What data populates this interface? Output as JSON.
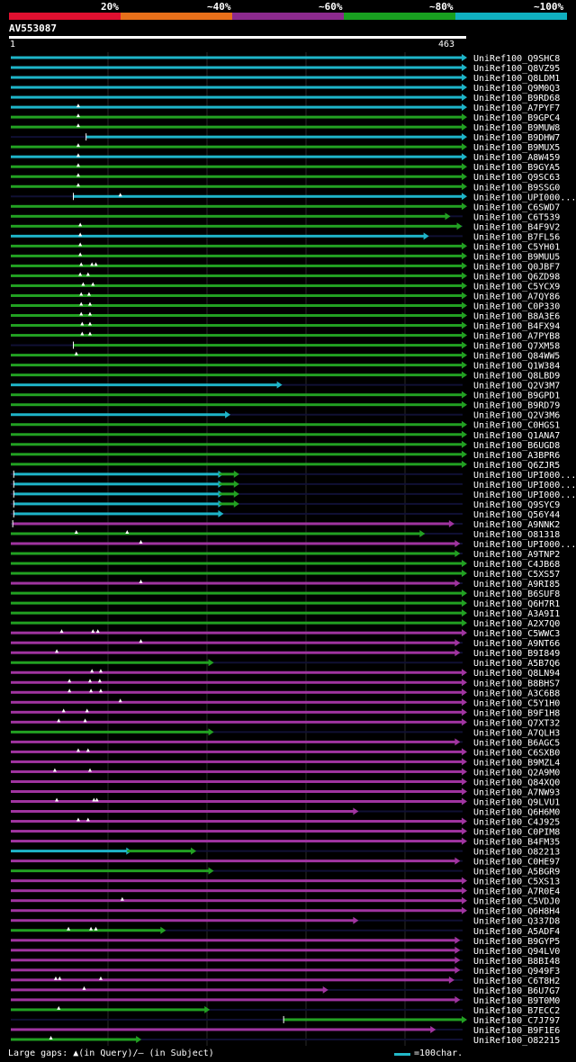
{
  "legend": {
    "labels": [
      "20%",
      "~40%",
      "~60%",
      "~80%",
      "~100%"
    ],
    "colors": [
      "#e01030",
      "#e8701a",
      "#8c2a8e",
      "#18a020",
      "#10b0c0"
    ]
  },
  "query": {
    "name": "AV553087",
    "start": "1",
    "end": "463"
  },
  "footer": {
    "gaps": "Large gaps: ▲(in Query)/– (in Subject)",
    "scale": "=100char."
  },
  "chart_data": {
    "type": "alignment",
    "query_length": 463,
    "colors": {
      "cyan": "#1eb4c8",
      "green": "#22a022",
      "magenta": "#a034a0",
      "unaligned": "#101034"
    },
    "rows": [
      {
        "name": "UniRef100_Q9SHC8",
        "color": "cyan",
        "start": 1,
        "end": 463,
        "gaps": []
      },
      {
        "name": "UniRef100_Q8VZ95",
        "color": "cyan",
        "start": 1,
        "end": 463,
        "gaps": []
      },
      {
        "name": "UniRef100_Q8LDM1",
        "color": "cyan",
        "start": 1,
        "end": 463,
        "gaps": []
      },
      {
        "name": "UniRef100_Q9M0Q3",
        "color": "cyan",
        "start": 1,
        "end": 463,
        "gaps": []
      },
      {
        "name": "UniRef100_B9RD68",
        "color": "cyan",
        "start": 1,
        "end": 463,
        "gaps": []
      },
      {
        "name": "UniRef100_A7PYF7",
        "color": "cyan",
        "start": 1,
        "end": 463,
        "gaps": [
          70
        ]
      },
      {
        "name": "UniRef100_B9GPC4",
        "color": "green",
        "start": 1,
        "end": 463,
        "gaps": [
          70
        ]
      },
      {
        "name": "UniRef100_B9MUW8",
        "color": "green",
        "start": 1,
        "end": 463,
        "gaps": [
          70
        ]
      },
      {
        "name": "UniRef100_B9DHW7",
        "color": "cyan",
        "start": 78,
        "end": 463,
        "gaps": []
      },
      {
        "name": "UniRef100_B9MUX5",
        "color": "green",
        "start": 1,
        "end": 463,
        "gaps": [
          70
        ]
      },
      {
        "name": "UniRef100_A8W459",
        "color": "cyan",
        "start": 1,
        "end": 463,
        "gaps": [
          70
        ]
      },
      {
        "name": "UniRef100_B9GYA5",
        "color": "green",
        "start": 1,
        "end": 463,
        "gaps": [
          70
        ]
      },
      {
        "name": "UniRef100_Q9SC63",
        "color": "green",
        "start": 1,
        "end": 463,
        "gaps": [
          70
        ]
      },
      {
        "name": "UniRef100_B9SSG0",
        "color": "green",
        "start": 1,
        "end": 463,
        "gaps": [
          70
        ]
      },
      {
        "name": "UniRef100_UPI000...",
        "color": "cyan",
        "start": 65,
        "end": 463,
        "gaps": [
          113
        ]
      },
      {
        "name": "UniRef100_C6SWD7",
        "color": "green",
        "start": 1,
        "end": 463,
        "gaps": []
      },
      {
        "name": "UniRef100_C6T539",
        "color": "green",
        "start": 1,
        "end": 446,
        "gaps": []
      },
      {
        "name": "UniRef100_B4F9V2",
        "color": "green",
        "start": 1,
        "end": 458,
        "gaps": [
          72
        ]
      },
      {
        "name": "UniRef100_B7FL56",
        "color": "cyan",
        "start": 1,
        "end": 424,
        "gaps": [
          72
        ]
      },
      {
        "name": "UniRef100_C5YH01",
        "color": "green",
        "start": 1,
        "end": 463,
        "gaps": [
          72
        ]
      },
      {
        "name": "UniRef100_B9MUU5",
        "color": "green",
        "start": 1,
        "end": 463,
        "gaps": [
          72
        ]
      },
      {
        "name": "UniRef100_Q0JBF7",
        "color": "green",
        "start": 1,
        "end": 463,
        "gaps": [
          73,
          84,
          88
        ]
      },
      {
        "name": "UniRef100_Q6ZD98",
        "color": "green",
        "start": 1,
        "end": 463,
        "gaps": [
          72,
          80
        ]
      },
      {
        "name": "UniRef100_C5YCX9",
        "color": "green",
        "start": 1,
        "end": 463,
        "gaps": [
          75,
          85
        ]
      },
      {
        "name": "UniRef100_A7QY86",
        "color": "green",
        "start": 1,
        "end": 463,
        "gaps": [
          73,
          81
        ]
      },
      {
        "name": "UniRef100_C0P330",
        "color": "green",
        "start": 1,
        "end": 463,
        "gaps": [
          73,
          82
        ]
      },
      {
        "name": "UniRef100_B8A3E6",
        "color": "green",
        "start": 1,
        "end": 463,
        "gaps": [
          73,
          82
        ]
      },
      {
        "name": "UniRef100_B4FX94",
        "color": "green",
        "start": 1,
        "end": 463,
        "gaps": [
          74,
          82
        ]
      },
      {
        "name": "UniRef100_A7PYB8",
        "color": "green",
        "start": 1,
        "end": 463,
        "gaps": [
          74,
          82
        ]
      },
      {
        "name": "UniRef100_Q7XM58",
        "color": "green",
        "start": 65,
        "end": 463,
        "gaps": []
      },
      {
        "name": "UniRef100_Q84WW5",
        "color": "green",
        "start": 1,
        "end": 463,
        "gaps": [
          68
        ]
      },
      {
        "name": "UniRef100_Q1W384",
        "color": "green",
        "start": 1,
        "end": 463,
        "gaps": []
      },
      {
        "name": "UniRef100_Q8LBD9",
        "color": "green",
        "start": 1,
        "end": 463,
        "gaps": []
      },
      {
        "name": "UniRef100_Q2V3M7",
        "color": "cyan",
        "start": 1,
        "end": 274,
        "gaps": []
      },
      {
        "name": "UniRef100_B9GPD1",
        "color": "green",
        "start": 1,
        "end": 463,
        "gaps": []
      },
      {
        "name": "UniRef100_B9RD79",
        "color": "green",
        "start": 1,
        "end": 463,
        "gaps": []
      },
      {
        "name": "UniRef100_Q2V3M6",
        "color": "cyan",
        "start": 1,
        "end": 221,
        "gaps": []
      },
      {
        "name": "UniRef100_C0HGS1",
        "color": "green",
        "start": 1,
        "end": 463,
        "gaps": []
      },
      {
        "name": "UniRef100_Q1ANA7",
        "color": "green",
        "start": 1,
        "end": 463,
        "gaps": []
      },
      {
        "name": "UniRef100_B6UGD8",
        "color": "green",
        "start": 1,
        "end": 463,
        "gaps": []
      },
      {
        "name": "UniRef100_A3BPR6",
        "color": "green",
        "start": 1,
        "end": 463,
        "gaps": []
      },
      {
        "name": "UniRef100_Q6ZJR5",
        "color": "green",
        "start": 1,
        "end": 463,
        "gaps": []
      },
      {
        "name": "UniRef100_UPI000...",
        "color": "cyan",
        "start": 4,
        "end": 214,
        "gaps": [],
        "extra": {
          "color": "green",
          "start": 214,
          "end": 230
        }
      },
      {
        "name": "UniRef100_UPI000...",
        "color": "cyan",
        "start": 4,
        "end": 214,
        "gaps": [],
        "extra": {
          "color": "green",
          "start": 214,
          "end": 230
        }
      },
      {
        "name": "UniRef100_UPI000...",
        "color": "cyan",
        "start": 4,
        "end": 214,
        "gaps": [],
        "extra": {
          "color": "green",
          "start": 214,
          "end": 230
        }
      },
      {
        "name": "UniRef100_Q9SYC9",
        "color": "cyan",
        "start": 4,
        "end": 214,
        "gaps": [],
        "extra": {
          "color": "green",
          "start": 214,
          "end": 230
        }
      },
      {
        "name": "UniRef100_Q56Y44",
        "color": "cyan",
        "start": 4,
        "end": 214,
        "gaps": []
      },
      {
        "name": "UniRef100_A9NNK2",
        "color": "magenta",
        "start": 3,
        "end": 450,
        "gaps": []
      },
      {
        "name": "UniRef100_O81318",
        "color": "green",
        "start": 1,
        "end": 420,
        "gaps": [
          68,
          120
        ]
      },
      {
        "name": "UniRef100_UPI000...",
        "color": "magenta",
        "start": 1,
        "end": 456,
        "gaps": [
          134
        ]
      },
      {
        "name": "UniRef100_A9TNP2",
        "color": "green",
        "start": 1,
        "end": 456,
        "gaps": []
      },
      {
        "name": "UniRef100_C4JB68",
        "color": "green",
        "start": 1,
        "end": 463,
        "gaps": []
      },
      {
        "name": "UniRef100_C5XS57",
        "color": "green",
        "start": 1,
        "end": 463,
        "gaps": []
      },
      {
        "name": "UniRef100_A9RI85",
        "color": "magenta",
        "start": 1,
        "end": 456,
        "gaps": [
          134
        ]
      },
      {
        "name": "UniRef100_B6SUF8",
        "color": "green",
        "start": 1,
        "end": 463,
        "gaps": []
      },
      {
        "name": "UniRef100_Q6H7R1",
        "color": "green",
        "start": 1,
        "end": 463,
        "gaps": []
      },
      {
        "name": "UniRef100_A3A9I1",
        "color": "green",
        "start": 1,
        "end": 463,
        "gaps": []
      },
      {
        "name": "UniRef100_A2X7Q0",
        "color": "green",
        "start": 1,
        "end": 463,
        "gaps": []
      },
      {
        "name": "UniRef100_C5WWC3",
        "color": "magenta",
        "start": 1,
        "end": 463,
        "gaps": [
          53,
          85,
          90
        ]
      },
      {
        "name": "UniRef100_A9NT66",
        "color": "magenta",
        "start": 1,
        "end": 456,
        "gaps": [
          134
        ]
      },
      {
        "name": "UniRef100_B9I849",
        "color": "magenta",
        "start": 1,
        "end": 456,
        "gaps": [
          48
        ]
      },
      {
        "name": "UniRef100_A5B7Q6",
        "color": "green",
        "start": 1,
        "end": 204,
        "gaps": []
      },
      {
        "name": "UniRef100_Q8LN94",
        "color": "magenta",
        "start": 1,
        "end": 463,
        "gaps": [
          84,
          93
        ]
      },
      {
        "name": "UniRef100_B8BHS7",
        "color": "magenta",
        "start": 1,
        "end": 463,
        "gaps": [
          61,
          82,
          92
        ]
      },
      {
        "name": "UniRef100_A3C6B8",
        "color": "magenta",
        "start": 1,
        "end": 463,
        "gaps": [
          61,
          83,
          93
        ]
      },
      {
        "name": "UniRef100_C5Y1H0",
        "color": "magenta",
        "start": 1,
        "end": 463,
        "gaps": [
          113
        ]
      },
      {
        "name": "UniRef100_B9F1H8",
        "color": "magenta",
        "start": 1,
        "end": 463,
        "gaps": [
          55,
          79
        ]
      },
      {
        "name": "UniRef100_Q7XT32",
        "color": "magenta",
        "start": 1,
        "end": 463,
        "gaps": [
          50,
          77
        ]
      },
      {
        "name": "UniRef100_A7QLH3",
        "color": "green",
        "start": 1,
        "end": 204,
        "gaps": []
      },
      {
        "name": "UniRef100_B6AGC5",
        "color": "magenta",
        "start": 1,
        "end": 456,
        "gaps": []
      },
      {
        "name": "UniRef100_C6SXB0",
        "color": "magenta",
        "start": 1,
        "end": 463,
        "gaps": [
          70,
          80
        ]
      },
      {
        "name": "UniRef100_B9MZL4",
        "color": "magenta",
        "start": 1,
        "end": 463,
        "gaps": []
      },
      {
        "name": "UniRef100_Q2A9M0",
        "color": "magenta",
        "start": 1,
        "end": 463,
        "gaps": [
          46,
          82
        ]
      },
      {
        "name": "UniRef100_Q84XQ0",
        "color": "magenta",
        "start": 1,
        "end": 463,
        "gaps": []
      },
      {
        "name": "UniRef100_A7NW93",
        "color": "magenta",
        "start": 1,
        "end": 463,
        "gaps": []
      },
      {
        "name": "UniRef100_Q9LVU1",
        "color": "magenta",
        "start": 1,
        "end": 463,
        "gaps": [
          48,
          86,
          89
        ]
      },
      {
        "name": "UniRef100_Q6H6M0",
        "color": "magenta",
        "start": 1,
        "end": 352,
        "gaps": []
      },
      {
        "name": "UniRef100_C4J925",
        "color": "magenta",
        "start": 1,
        "end": 463,
        "gaps": [
          70,
          80
        ]
      },
      {
        "name": "UniRef100_C0PIM8",
        "color": "magenta",
        "start": 1,
        "end": 463,
        "gaps": []
      },
      {
        "name": "UniRef100_B4FM35",
        "color": "magenta",
        "start": 1,
        "end": 463,
        "gaps": []
      },
      {
        "name": "UniRef100_O82213",
        "color": "cyan",
        "start": 1,
        "end": 120,
        "gaps": [],
        "extra": {
          "color": "green",
          "start": 120,
          "end": 186
        }
      },
      {
        "name": "UniRef100_C0HE97",
        "color": "magenta",
        "start": 1,
        "end": 456,
        "gaps": []
      },
      {
        "name": "UniRef100_A5BGR9",
        "color": "green",
        "start": 1,
        "end": 204,
        "gaps": []
      },
      {
        "name": "UniRef100_C5XS13",
        "color": "magenta",
        "start": 1,
        "end": 463,
        "gaps": []
      },
      {
        "name": "UniRef100_A7R0E4",
        "color": "magenta",
        "start": 1,
        "end": 463,
        "gaps": []
      },
      {
        "name": "UniRef100_C5VDJ0",
        "color": "magenta",
        "start": 1,
        "end": 463,
        "gaps": [
          115
        ]
      },
      {
        "name": "UniRef100_Q6H8H4",
        "color": "magenta",
        "start": 1,
        "end": 463,
        "gaps": []
      },
      {
        "name": "UniRef100_Q337D8",
        "color": "magenta",
        "start": 1,
        "end": 352,
        "gaps": []
      },
      {
        "name": "UniRef100_A5ADF4",
        "color": "green",
        "start": 1,
        "end": 155,
        "gaps": [
          60,
          83,
          88
        ]
      },
      {
        "name": "UniRef100_B9GYP5",
        "color": "magenta",
        "start": 1,
        "end": 456,
        "gaps": []
      },
      {
        "name": "UniRef100_Q94LV0",
        "color": "magenta",
        "start": 1,
        "end": 456,
        "gaps": []
      },
      {
        "name": "UniRef100_B8BI48",
        "color": "magenta",
        "start": 1,
        "end": 456,
        "gaps": []
      },
      {
        "name": "UniRef100_Q949F3",
        "color": "magenta",
        "start": 1,
        "end": 456,
        "gaps": []
      },
      {
        "name": "UniRef100_C6T8H2",
        "color": "magenta",
        "start": 1,
        "end": 450,
        "gaps": [
          47,
          51,
          93
        ]
      },
      {
        "name": "UniRef100_B6U7G7",
        "color": "magenta",
        "start": 1,
        "end": 321,
        "gaps": [
          76
        ]
      },
      {
        "name": "UniRef100_B9T0M0",
        "color": "magenta",
        "start": 1,
        "end": 456,
        "gaps": []
      },
      {
        "name": "UniRef100_B7ECC2",
        "color": "green",
        "start": 1,
        "end": 200,
        "gaps": [
          50
        ]
      },
      {
        "name": "UniRef100_C7J797",
        "color": "green",
        "start": 280,
        "end": 463,
        "gaps": []
      },
      {
        "name": "UniRef100_B9F1E6",
        "color": "magenta",
        "start": 1,
        "end": 431,
        "gaps": []
      },
      {
        "name": "UniRef100_O82215",
        "color": "green",
        "start": 1,
        "end": 130,
        "gaps": [
          42
        ]
      }
    ]
  }
}
